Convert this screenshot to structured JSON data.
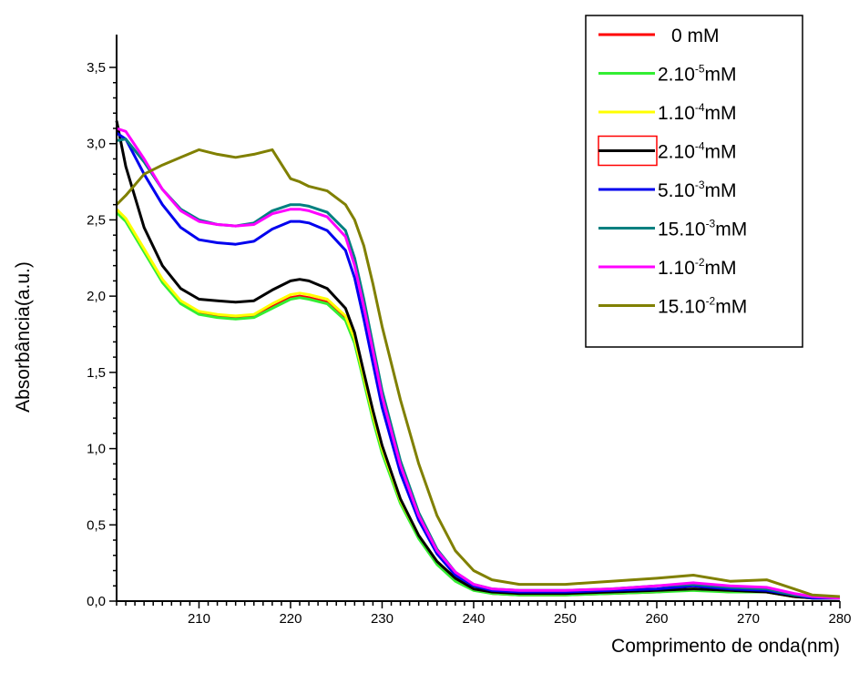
{
  "chart_data": {
    "type": "line",
    "xlabel": "Comprimento de onda(nm)",
    "ylabel": "Absorbância(a.u.)",
    "xlim": [
      201,
      280
    ],
    "ylim": [
      0,
      3.5
    ],
    "x_ticks": [
      {
        "value": 210,
        "label": "210"
      },
      {
        "value": 220,
        "label": "220"
      },
      {
        "value": 230,
        "label": "230"
      },
      {
        "value": 240,
        "label": "240"
      },
      {
        "value": 250,
        "label": "250"
      },
      {
        "value": 260,
        "label": "260"
      },
      {
        "value": 270,
        "label": "270"
      },
      {
        "value": 280,
        "label": "280"
      }
    ],
    "y_ticks": [
      {
        "value": 0,
        "label": "0,0"
      },
      {
        "value": 0.5,
        "label": "0,5"
      },
      {
        "value": 1.0,
        "label": "1,0"
      },
      {
        "value": 1.5,
        "label": "1,5"
      },
      {
        "value": 2.0,
        "label": "2,0"
      },
      {
        "value": 2.5,
        "label": "2,5"
      },
      {
        "value": 3.0,
        "label": "3,0"
      },
      {
        "value": 3.5,
        "label": "3,5"
      }
    ],
    "grid": false,
    "legend_position": "top-right",
    "x": [
      201,
      202,
      204,
      206,
      208,
      210,
      212,
      214,
      216,
      218,
      220,
      221,
      222,
      224,
      226,
      227,
      228,
      229,
      230,
      232,
      234,
      236,
      238,
      240,
      242,
      245,
      250,
      255,
      260,
      264,
      268,
      272,
      275,
      277,
      280
    ],
    "series": [
      {
        "name": "0 mM",
        "prefix": "",
        "base": "0",
        "exp": "",
        "unit": "mM",
        "color": "#ff0000",
        "values": [
          2.56,
          2.5,
          2.3,
          2.1,
          1.96,
          1.89,
          1.87,
          1.86,
          1.87,
          1.93,
          1.99,
          2.0,
          1.99,
          1.96,
          1.85,
          1.7,
          1.45,
          1.2,
          0.98,
          0.65,
          0.42,
          0.25,
          0.14,
          0.08,
          0.05,
          0.04,
          0.04,
          0.05,
          0.06,
          0.08,
          0.06,
          0.06,
          0.03,
          0.02,
          0.02
        ]
      },
      {
        "name": "2.10-5mM",
        "prefix": "",
        "base": "2.10",
        "exp": "-5",
        "unit": "mM",
        "color": "#33ee33",
        "values": [
          2.55,
          2.49,
          2.29,
          2.09,
          1.95,
          1.88,
          1.86,
          1.85,
          1.86,
          1.92,
          1.98,
          1.99,
          1.98,
          1.95,
          1.84,
          1.69,
          1.44,
          1.19,
          0.97,
          0.64,
          0.41,
          0.24,
          0.13,
          0.07,
          0.05,
          0.04,
          0.04,
          0.05,
          0.06,
          0.07,
          0.06,
          0.06,
          0.03,
          0.02,
          0.02
        ]
      },
      {
        "name": "1.10-4mM",
        "prefix": "",
        "base": "1.10",
        "exp": "-4",
        "unit": "mM",
        "color": "#ffff00",
        "values": [
          2.57,
          2.51,
          2.31,
          2.11,
          1.97,
          1.9,
          1.88,
          1.87,
          1.88,
          1.95,
          2.01,
          2.02,
          2.01,
          1.98,
          1.87,
          1.72,
          1.47,
          1.22,
          1.0,
          0.66,
          0.43,
          0.26,
          0.15,
          0.08,
          0.06,
          0.05,
          0.05,
          0.06,
          0.07,
          0.08,
          0.07,
          0.06,
          0.03,
          0.02,
          0.02
        ]
      },
      {
        "name": "2.10-4mM",
        "prefix": "",
        "base": "2.10",
        "exp": "-4",
        "unit": "mM",
        "color": "#000000",
        "values": [
          3.15,
          2.85,
          2.45,
          2.2,
          2.05,
          1.98,
          1.97,
          1.96,
          1.97,
          2.04,
          2.1,
          2.11,
          2.1,
          2.05,
          1.92,
          1.76,
          1.5,
          1.25,
          1.02,
          0.67,
          0.43,
          0.26,
          0.15,
          0.08,
          0.06,
          0.05,
          0.05,
          0.06,
          0.07,
          0.08,
          0.07,
          0.06,
          0.03,
          0.02,
          0.02
        ]
      },
      {
        "name": "5.10-3mM",
        "prefix": "",
        "base": "5.10",
        "exp": "-3",
        "unit": "mM",
        "color": "#0000ee",
        "values": [
          3.07,
          3.03,
          2.8,
          2.6,
          2.45,
          2.37,
          2.35,
          2.34,
          2.36,
          2.44,
          2.49,
          2.49,
          2.48,
          2.43,
          2.3,
          2.12,
          1.85,
          1.56,
          1.27,
          0.84,
          0.53,
          0.31,
          0.17,
          0.1,
          0.07,
          0.06,
          0.06,
          0.07,
          0.08,
          0.1,
          0.08,
          0.07,
          0.04,
          0.02,
          0.02
        ]
      },
      {
        "name": "15.10-3mM",
        "prefix": "",
        "base": "15.10",
        "exp": "-3",
        "unit": "mM",
        "color": "#008080",
        "values": [
          3.02,
          3.03,
          2.88,
          2.7,
          2.57,
          2.5,
          2.47,
          2.46,
          2.48,
          2.56,
          2.6,
          2.6,
          2.59,
          2.55,
          2.43,
          2.25,
          1.98,
          1.68,
          1.38,
          0.92,
          0.58,
          0.34,
          0.19,
          0.11,
          0.08,
          0.07,
          0.07,
          0.08,
          0.1,
          0.11,
          0.09,
          0.08,
          0.04,
          0.03,
          0.02
        ]
      },
      {
        "name": "1.10-2mM",
        "prefix": "",
        "base": "1.10",
        "exp": "-2",
        "unit": "mM",
        "color": "#ff00ff",
        "values": [
          3.1,
          3.08,
          2.9,
          2.7,
          2.56,
          2.49,
          2.47,
          2.46,
          2.47,
          2.54,
          2.57,
          2.57,
          2.56,
          2.52,
          2.39,
          2.2,
          1.93,
          1.64,
          1.34,
          0.89,
          0.56,
          0.33,
          0.19,
          0.11,
          0.08,
          0.07,
          0.07,
          0.08,
          0.1,
          0.12,
          0.1,
          0.09,
          0.05,
          0.03,
          0.02
        ]
      },
      {
        "name": "15.10-2mM",
        "prefix": "",
        "base": "15.10",
        "exp": "-2",
        "unit": "mM",
        "color": "#808000",
        "values": [
          2.6,
          2.66,
          2.8,
          2.86,
          2.91,
          2.96,
          2.93,
          2.91,
          2.93,
          2.96,
          2.77,
          2.75,
          2.72,
          2.69,
          2.6,
          2.5,
          2.33,
          2.08,
          1.8,
          1.32,
          0.9,
          0.56,
          0.33,
          0.2,
          0.14,
          0.11,
          0.11,
          0.13,
          0.15,
          0.17,
          0.13,
          0.14,
          0.08,
          0.04,
          0.03
        ]
      }
    ]
  }
}
